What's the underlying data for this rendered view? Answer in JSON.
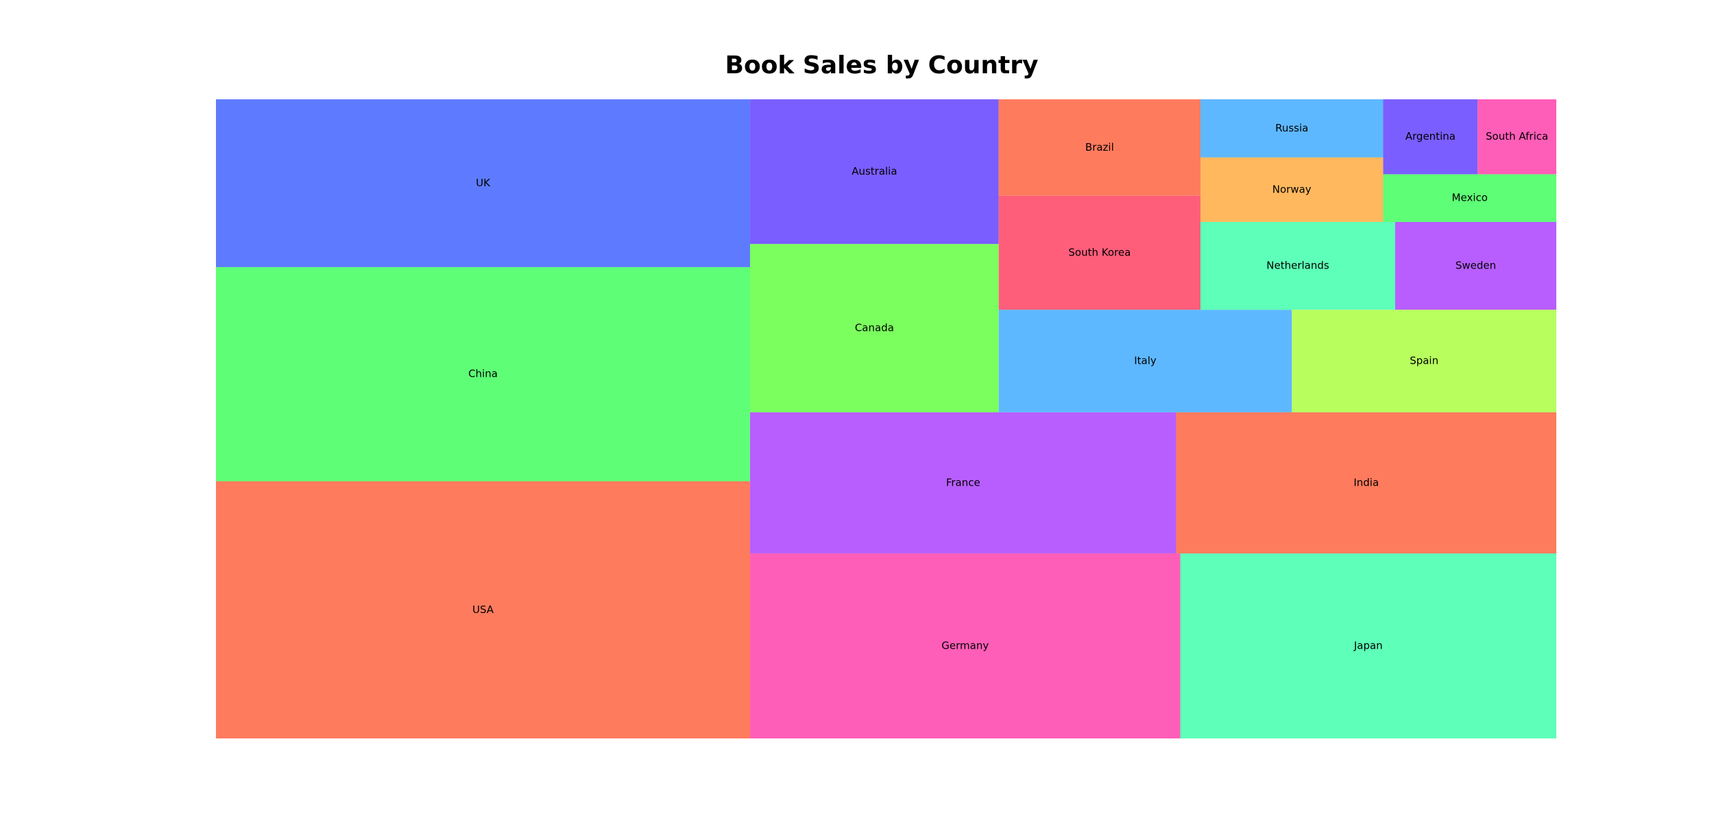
{
  "chart_data": {
    "type": "treemap",
    "title": "Book Sales by Country",
    "items": [
      {
        "label": "USA",
        "value": 23.3,
        "color": "#FF7B5E"
      },
      {
        "label": "China",
        "value": 19.4,
        "color": "#5EFF76"
      },
      {
        "label": "UK",
        "value": 15.2,
        "color": "#5E7BFF"
      },
      {
        "label": "Germany",
        "value": 13.5,
        "color": "#FF5EB8"
      },
      {
        "label": "Japan",
        "value": 11.8,
        "color": "#5EFFB8"
      },
      {
        "label": "France",
        "value": 10.2,
        "color": "#B85EFF"
      },
      {
        "label": "India",
        "value": 9.1,
        "color": "#FF7B5E"
      },
      {
        "label": "Canada",
        "value": 7.1,
        "color": "#7BFF5E"
      },
      {
        "label": "Australia",
        "value": 6.1,
        "color": "#7B5EFF"
      },
      {
        "label": "Italy",
        "value": 5.1,
        "color": "#5EB8FF"
      },
      {
        "label": "Spain",
        "value": 4.6,
        "color": "#B8FF5E"
      },
      {
        "label": "South Korea",
        "value": 3.9,
        "color": "#FF5E7B"
      },
      {
        "label": "Brazil",
        "value": 3.3,
        "color": "#FF7B5E"
      },
      {
        "label": "Netherlands",
        "value": 2.9,
        "color": "#5EFFB8"
      },
      {
        "label": "Sweden",
        "value": 2.4,
        "color": "#B85EFF"
      },
      {
        "label": "Norway",
        "value": 2.0,
        "color": "#FFB85E"
      },
      {
        "label": "Russia",
        "value": 1.8,
        "color": "#5EB8FF"
      },
      {
        "label": "Mexico",
        "value": 1.4,
        "color": "#5EFF76"
      },
      {
        "label": "Argentina",
        "value": 1.2,
        "color": "#7B5EFF"
      },
      {
        "label": "South Africa",
        "value": 1.0,
        "color": "#FF5EB8"
      }
    ]
  }
}
